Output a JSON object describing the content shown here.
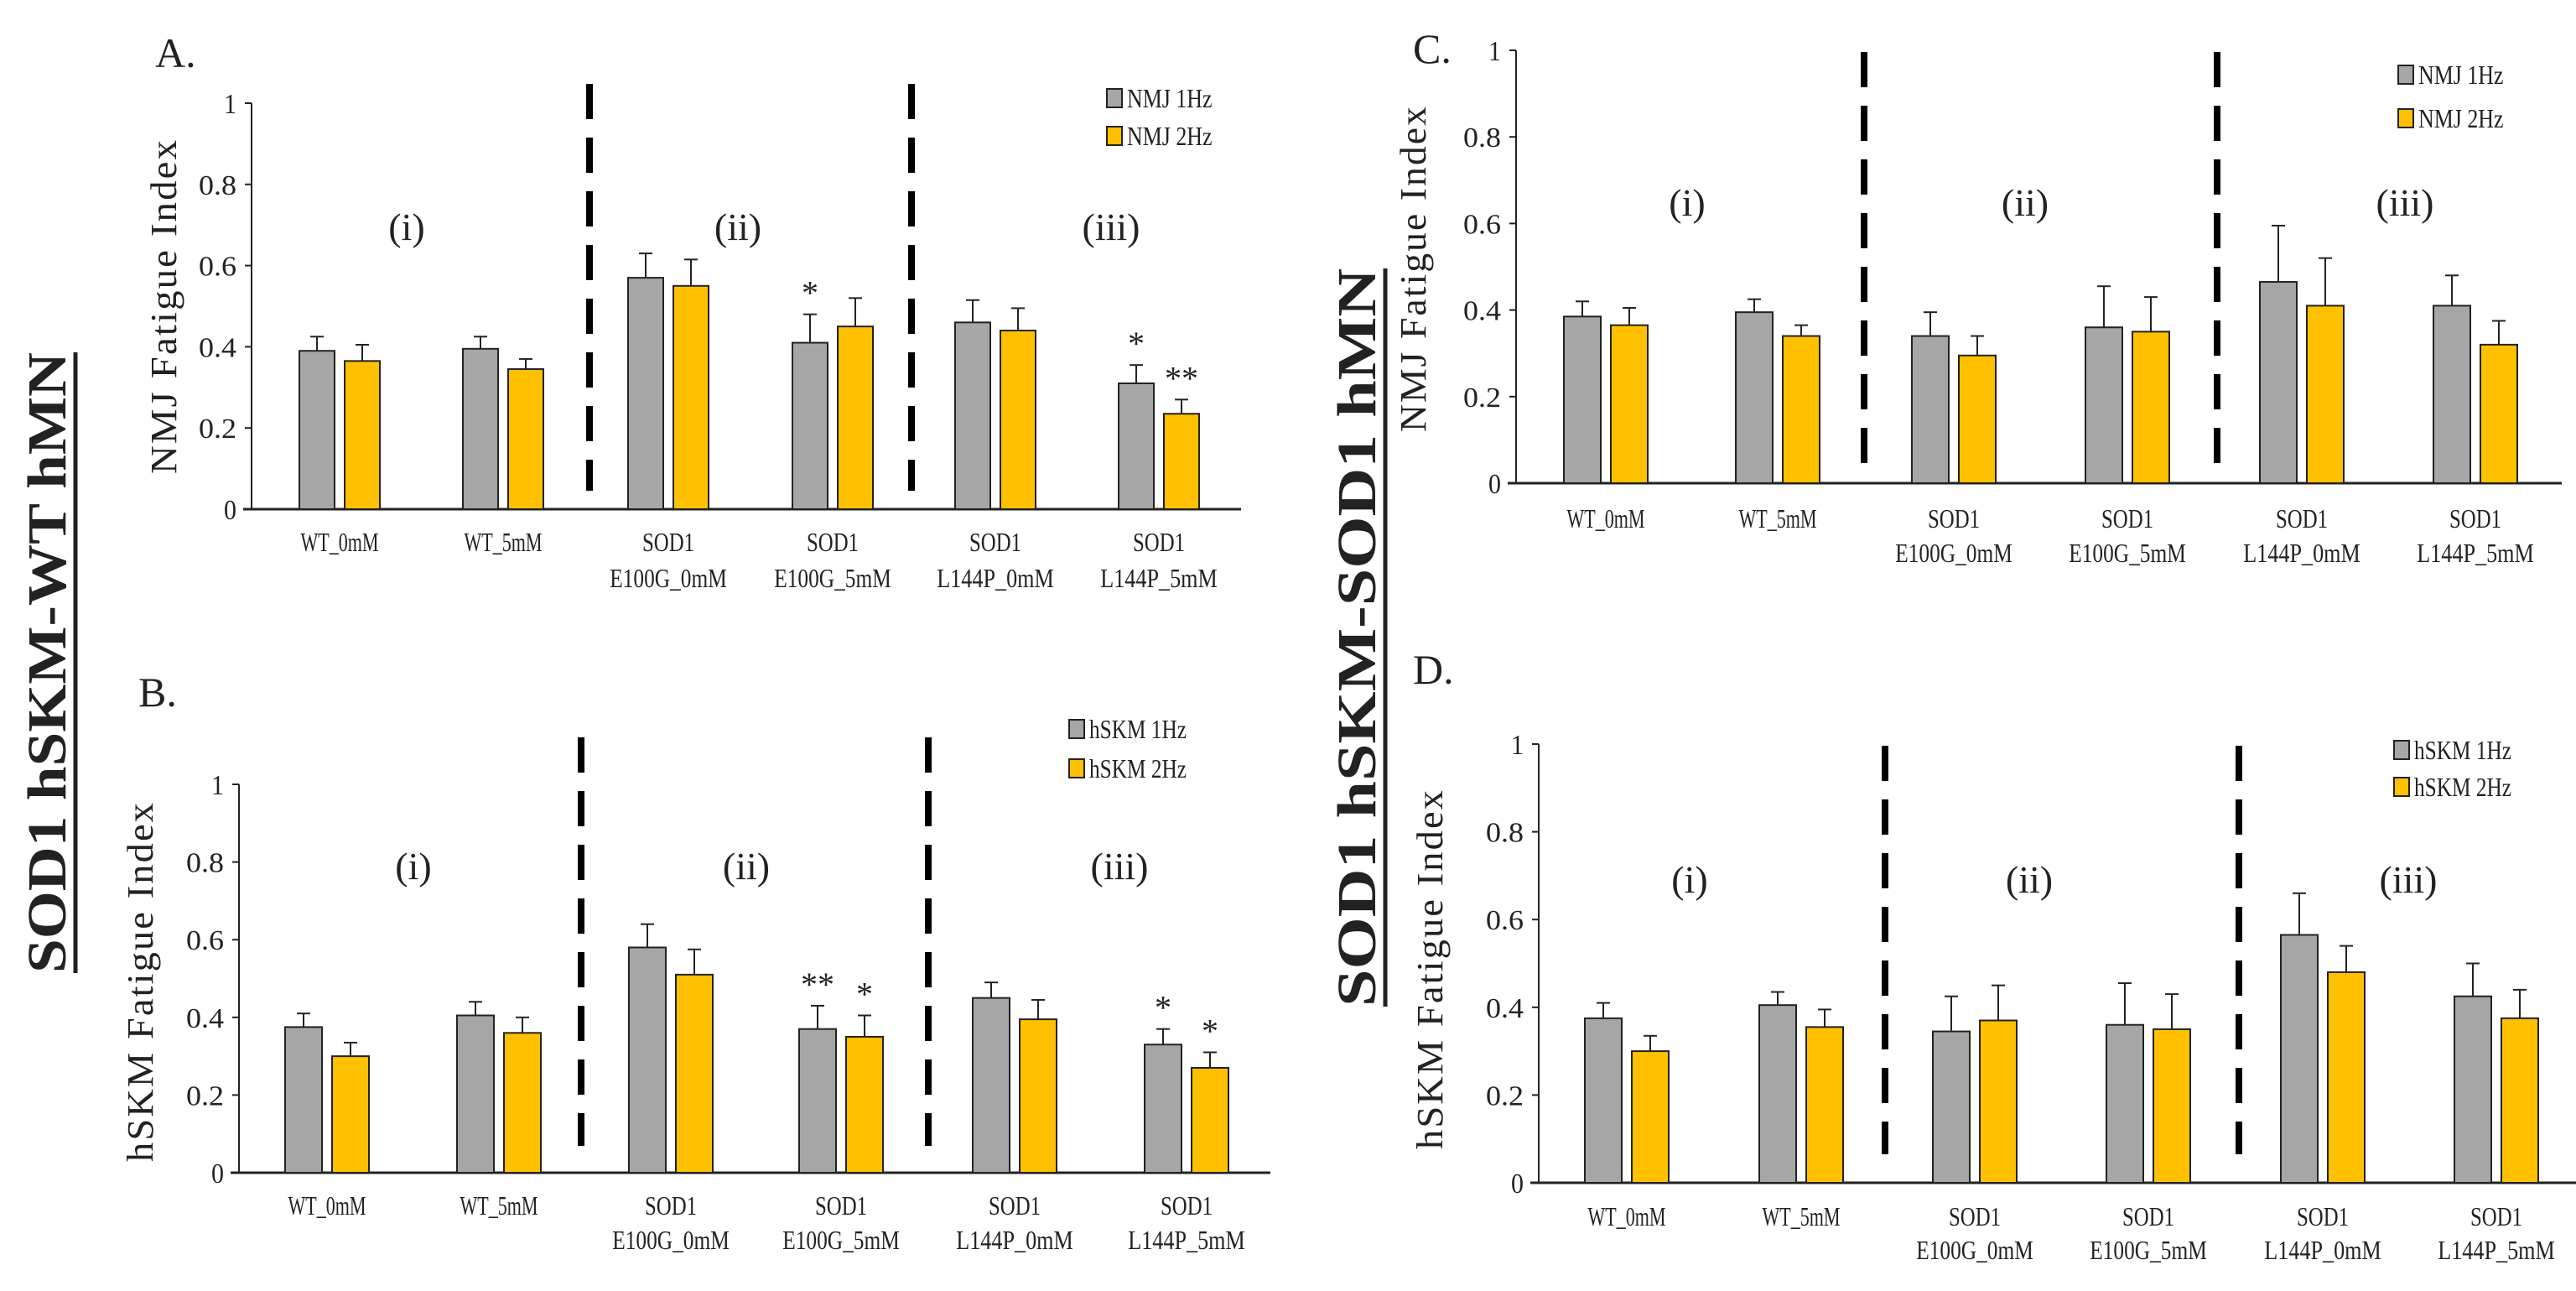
{
  "row_titles": {
    "left": "SOD1 hSKM-WT hMN",
    "right": "SOD1 hSKM-SOD1 hMN"
  },
  "chart_data": [
    {
      "panel": "A.",
      "type": "bar",
      "ylabel": "NMJ Fatigue Index",
      "ylim": [
        0,
        1
      ],
      "yticks": [
        "0",
        "0.2",
        "0.4",
        "0.6",
        "0.8",
        "1"
      ],
      "categories": [
        [
          "WT_0mM"
        ],
        [
          "WT_5mM"
        ],
        [
          "SOD1",
          "E100G_0mM"
        ],
        [
          "SOD1",
          "E100G_5mM"
        ],
        [
          "SOD1",
          "L144P_0mM"
        ],
        [
          "SOD1",
          "L144P_5mM"
        ]
      ],
      "groups": [
        "(i)",
        "(ii)",
        "(iii)"
      ],
      "legend_position": "top-right",
      "series": [
        {
          "name": "NMJ 1Hz",
          "color": "#A6A6A6",
          "values": [
            0.39,
            0.395,
            0.57,
            0.41,
            0.46,
            0.31
          ],
          "errors": [
            0.035,
            0.03,
            0.06,
            0.07,
            0.055,
            0.045
          ],
          "stars": [
            "",
            "",
            "",
            "*",
            "",
            "*"
          ]
        },
        {
          "name": "NMJ 2Hz",
          "color": "#FFC000",
          "values": [
            0.365,
            0.345,
            0.55,
            0.45,
            0.44,
            0.235
          ],
          "errors": [
            0.04,
            0.025,
            0.065,
            0.07,
            0.055,
            0.035
          ],
          "stars": [
            "",
            "",
            "",
            "",
            "",
            "**"
          ]
        }
      ]
    },
    {
      "panel": "B.",
      "type": "bar",
      "ylabel": "hSKM Fatigue Index",
      "ylim": [
        0,
        1
      ],
      "yticks": [
        "0",
        "0.2",
        "0.4",
        "0.6",
        "0.8",
        "1"
      ],
      "categories": [
        [
          "WT_0mM"
        ],
        [
          "WT_5mM"
        ],
        [
          "SOD1",
          "E100G_0mM"
        ],
        [
          "SOD1",
          "E100G_5mM"
        ],
        [
          "SOD1",
          "L144P_0mM"
        ],
        [
          "SOD1",
          "L144P_5mM"
        ]
      ],
      "groups": [
        "(i)",
        "(ii)",
        "(iii)"
      ],
      "legend_position": "top-right",
      "series": [
        {
          "name": "hSKM 1Hz",
          "color": "#A6A6A6",
          "values": [
            0.375,
            0.405,
            0.58,
            0.37,
            0.45,
            0.33
          ],
          "errors": [
            0.035,
            0.035,
            0.06,
            0.06,
            0.04,
            0.04
          ],
          "stars": [
            "",
            "",
            "",
            "**",
            "",
            "*"
          ]
        },
        {
          "name": "hSKM 2Hz",
          "color": "#FFC000",
          "values": [
            0.3,
            0.36,
            0.51,
            0.35,
            0.395,
            0.27
          ],
          "errors": [
            0.035,
            0.04,
            0.065,
            0.055,
            0.05,
            0.04
          ],
          "stars": [
            "",
            "",
            "",
            "*",
            "",
            "*"
          ]
        }
      ]
    },
    {
      "panel": "C.",
      "type": "bar",
      "ylabel": "NMJ Fatigue Index",
      "ylim": [
        0,
        1
      ],
      "yticks": [
        "0",
        "0.2",
        "0.4",
        "0.6",
        "0.8",
        "1"
      ],
      "categories": [
        [
          "WT_0mM"
        ],
        [
          "WT_5mM"
        ],
        [
          "SOD1",
          "E100G_0mM"
        ],
        [
          "SOD1",
          "E100G_5mM"
        ],
        [
          "SOD1",
          "L144P_0mM"
        ],
        [
          "SOD1",
          "L144P_5mM"
        ]
      ],
      "groups": [
        "(i)",
        "(ii)",
        "(iii)"
      ],
      "legend_position": "top-right",
      "series": [
        {
          "name": "NMJ 1Hz",
          "color": "#A6A6A6",
          "values": [
            0.385,
            0.395,
            0.34,
            0.36,
            0.465,
            0.41
          ],
          "errors": [
            0.035,
            0.03,
            0.055,
            0.095,
            0.13,
            0.07
          ],
          "stars": [
            "",
            "",
            "",
            "",
            "",
            ""
          ]
        },
        {
          "name": "NMJ 2Hz",
          "color": "#FFC000",
          "values": [
            0.365,
            0.34,
            0.295,
            0.35,
            0.41,
            0.32
          ],
          "errors": [
            0.04,
            0.025,
            0.045,
            0.08,
            0.11,
            0.055
          ],
          "stars": [
            "",
            "",
            "",
            "",
            "",
            ""
          ]
        }
      ]
    },
    {
      "panel": "D.",
      "type": "bar",
      "ylabel": "hSKM Fatigue Index",
      "ylim": [
        0,
        1
      ],
      "yticks": [
        "0",
        "0.2",
        "0.4",
        "0.6",
        "0.8",
        "1"
      ],
      "categories": [
        [
          "WT_0mM"
        ],
        [
          "WT_5mM"
        ],
        [
          "SOD1",
          "E100G_0mM"
        ],
        [
          "SOD1",
          "E100G_5mM"
        ],
        [
          "SOD1",
          "L144P_0mM"
        ],
        [
          "SOD1",
          "L144P_5mM"
        ]
      ],
      "groups": [
        "(i)",
        "(ii)",
        "(iii)"
      ],
      "legend_position": "top-right",
      "series": [
        {
          "name": "hSKM 1Hz",
          "color": "#A6A6A6",
          "values": [
            0.375,
            0.405,
            0.345,
            0.36,
            0.565,
            0.425
          ],
          "errors": [
            0.035,
            0.03,
            0.08,
            0.095,
            0.095,
            0.075
          ],
          "stars": [
            "",
            "",
            "",
            "",
            "",
            ""
          ]
        },
        {
          "name": "hSKM 2Hz",
          "color": "#FFC000",
          "values": [
            0.3,
            0.355,
            0.37,
            0.35,
            0.48,
            0.375
          ],
          "errors": [
            0.035,
            0.04,
            0.08,
            0.08,
            0.06,
            0.065
          ],
          "stars": [
            "",
            "",
            "",
            "",
            "",
            ""
          ]
        }
      ]
    }
  ]
}
